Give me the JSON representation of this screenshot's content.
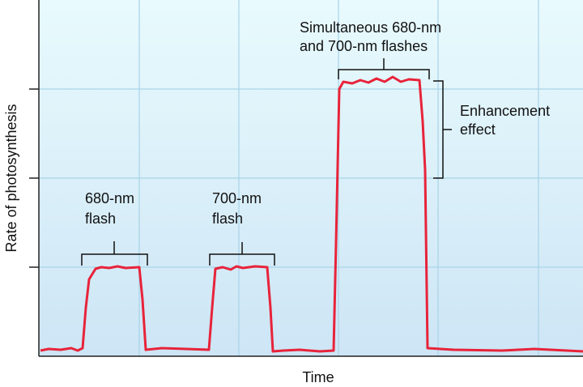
{
  "axes": {
    "y_label": "Rate of photosynthesis",
    "x_label": "Time"
  },
  "annotations": {
    "flash_680": [
      "680-nm",
      "flash"
    ],
    "flash_700": [
      "700-nm",
      "flash"
    ],
    "simultaneous": [
      "Simultaneous 680-nm",
      "and 700-nm flashes"
    ],
    "enhancement": [
      "Enhancement",
      "effect"
    ]
  }
}
